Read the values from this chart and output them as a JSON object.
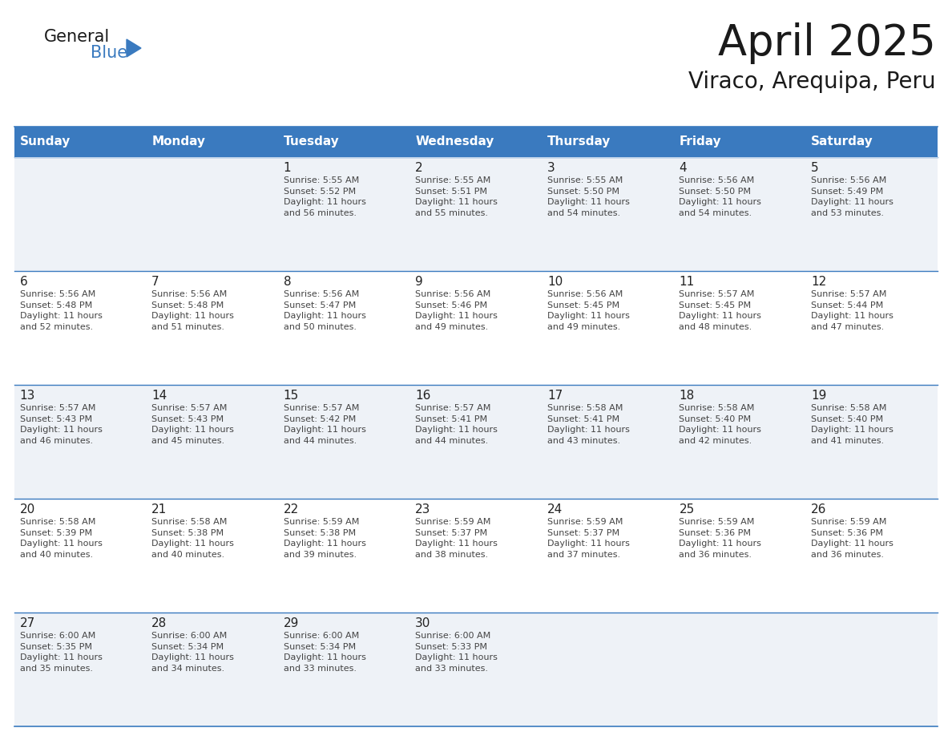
{
  "title": "April 2025",
  "subtitle": "Viraco, Arequipa, Peru",
  "days_of_week": [
    "Sunday",
    "Monday",
    "Tuesday",
    "Wednesday",
    "Thursday",
    "Friday",
    "Saturday"
  ],
  "header_bg": "#3a7abf",
  "header_text": "#ffffff",
  "row_bg_odd": "#eef2f7",
  "row_bg_even": "#ffffff",
  "cell_border": "#3a7abf",
  "day_number_color": "#222222",
  "info_text_color": "#444444",
  "title_color": "#1a1a1a",
  "subtitle_color": "#1a1a1a",
  "logo_general_color": "#1a1a1a",
  "logo_blue_color": "#3a7abf",
  "logo_triangle_color": "#3a7abf",
  "weeks": [
    {
      "days": [
        {
          "date": "",
          "info": ""
        },
        {
          "date": "",
          "info": ""
        },
        {
          "date": "1",
          "info": "Sunrise: 5:55 AM\nSunset: 5:52 PM\nDaylight: 11 hours\nand 56 minutes."
        },
        {
          "date": "2",
          "info": "Sunrise: 5:55 AM\nSunset: 5:51 PM\nDaylight: 11 hours\nand 55 minutes."
        },
        {
          "date": "3",
          "info": "Sunrise: 5:55 AM\nSunset: 5:50 PM\nDaylight: 11 hours\nand 54 minutes."
        },
        {
          "date": "4",
          "info": "Sunrise: 5:56 AM\nSunset: 5:50 PM\nDaylight: 11 hours\nand 54 minutes."
        },
        {
          "date": "5",
          "info": "Sunrise: 5:56 AM\nSunset: 5:49 PM\nDaylight: 11 hours\nand 53 minutes."
        }
      ]
    },
    {
      "days": [
        {
          "date": "6",
          "info": "Sunrise: 5:56 AM\nSunset: 5:48 PM\nDaylight: 11 hours\nand 52 minutes."
        },
        {
          "date": "7",
          "info": "Sunrise: 5:56 AM\nSunset: 5:48 PM\nDaylight: 11 hours\nand 51 minutes."
        },
        {
          "date": "8",
          "info": "Sunrise: 5:56 AM\nSunset: 5:47 PM\nDaylight: 11 hours\nand 50 minutes."
        },
        {
          "date": "9",
          "info": "Sunrise: 5:56 AM\nSunset: 5:46 PM\nDaylight: 11 hours\nand 49 minutes."
        },
        {
          "date": "10",
          "info": "Sunrise: 5:56 AM\nSunset: 5:45 PM\nDaylight: 11 hours\nand 49 minutes."
        },
        {
          "date": "11",
          "info": "Sunrise: 5:57 AM\nSunset: 5:45 PM\nDaylight: 11 hours\nand 48 minutes."
        },
        {
          "date": "12",
          "info": "Sunrise: 5:57 AM\nSunset: 5:44 PM\nDaylight: 11 hours\nand 47 minutes."
        }
      ]
    },
    {
      "days": [
        {
          "date": "13",
          "info": "Sunrise: 5:57 AM\nSunset: 5:43 PM\nDaylight: 11 hours\nand 46 minutes."
        },
        {
          "date": "14",
          "info": "Sunrise: 5:57 AM\nSunset: 5:43 PM\nDaylight: 11 hours\nand 45 minutes."
        },
        {
          "date": "15",
          "info": "Sunrise: 5:57 AM\nSunset: 5:42 PM\nDaylight: 11 hours\nand 44 minutes."
        },
        {
          "date": "16",
          "info": "Sunrise: 5:57 AM\nSunset: 5:41 PM\nDaylight: 11 hours\nand 44 minutes."
        },
        {
          "date": "17",
          "info": "Sunrise: 5:58 AM\nSunset: 5:41 PM\nDaylight: 11 hours\nand 43 minutes."
        },
        {
          "date": "18",
          "info": "Sunrise: 5:58 AM\nSunset: 5:40 PM\nDaylight: 11 hours\nand 42 minutes."
        },
        {
          "date": "19",
          "info": "Sunrise: 5:58 AM\nSunset: 5:40 PM\nDaylight: 11 hours\nand 41 minutes."
        }
      ]
    },
    {
      "days": [
        {
          "date": "20",
          "info": "Sunrise: 5:58 AM\nSunset: 5:39 PM\nDaylight: 11 hours\nand 40 minutes."
        },
        {
          "date": "21",
          "info": "Sunrise: 5:58 AM\nSunset: 5:38 PM\nDaylight: 11 hours\nand 40 minutes."
        },
        {
          "date": "22",
          "info": "Sunrise: 5:59 AM\nSunset: 5:38 PM\nDaylight: 11 hours\nand 39 minutes."
        },
        {
          "date": "23",
          "info": "Sunrise: 5:59 AM\nSunset: 5:37 PM\nDaylight: 11 hours\nand 38 minutes."
        },
        {
          "date": "24",
          "info": "Sunrise: 5:59 AM\nSunset: 5:37 PM\nDaylight: 11 hours\nand 37 minutes."
        },
        {
          "date": "25",
          "info": "Sunrise: 5:59 AM\nSunset: 5:36 PM\nDaylight: 11 hours\nand 36 minutes."
        },
        {
          "date": "26",
          "info": "Sunrise: 5:59 AM\nSunset: 5:36 PM\nDaylight: 11 hours\nand 36 minutes."
        }
      ]
    },
    {
      "days": [
        {
          "date": "27",
          "info": "Sunrise: 6:00 AM\nSunset: 5:35 PM\nDaylight: 11 hours\nand 35 minutes."
        },
        {
          "date": "28",
          "info": "Sunrise: 6:00 AM\nSunset: 5:34 PM\nDaylight: 11 hours\nand 34 minutes."
        },
        {
          "date": "29",
          "info": "Sunrise: 6:00 AM\nSunset: 5:34 PM\nDaylight: 11 hours\nand 33 minutes."
        },
        {
          "date": "30",
          "info": "Sunrise: 6:00 AM\nSunset: 5:33 PM\nDaylight: 11 hours\nand 33 minutes."
        },
        {
          "date": "",
          "info": ""
        },
        {
          "date": "",
          "info": ""
        },
        {
          "date": "",
          "info": ""
        }
      ]
    }
  ]
}
